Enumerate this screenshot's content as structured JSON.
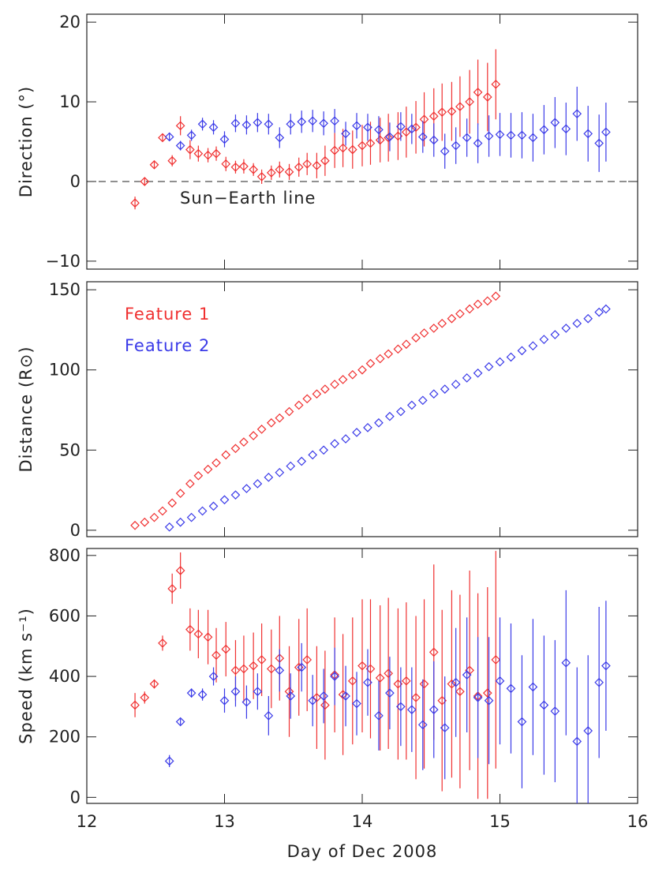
{
  "chart_data": [
    {
      "type": "scatter",
      "ylabel": "Direction (°)",
      "xlim": [
        12,
        16
      ],
      "xticks": [
        12,
        13,
        14,
        15,
        16
      ],
      "ylim": [
        -11,
        21
      ],
      "yticks": [
        {
          "value": -10,
          "label": "−10"
        },
        0,
        10,
        20
      ],
      "reference_line": {
        "value": 0,
        "label": "Sun−Earth line"
      },
      "series": [
        {
          "name": "Feature 1",
          "color": "#f03030",
          "x": [
            12.35,
            12.42,
            12.49,
            12.55,
            12.62,
            12.68,
            12.75,
            12.81,
            12.88,
            12.94,
            13.01,
            13.08,
            13.14,
            13.21,
            13.27,
            13.34,
            13.4,
            13.47,
            13.54,
            13.6,
            13.67,
            13.73,
            13.8,
            13.86,
            13.93,
            14.0,
            14.06,
            14.13,
            14.19,
            14.26,
            14.32,
            14.39,
            14.45,
            14.52,
            14.58,
            14.65,
            14.71,
            14.78,
            14.84,
            14.91,
            14.97
          ],
          "values": [
            -2.7,
            0.0,
            2.1,
            5.5,
            2.6,
            7.0,
            4.0,
            3.5,
            3.3,
            3.5,
            2.2,
            1.8,
            1.9,
            1.5,
            0.6,
            1.1,
            1.5,
            1.2,
            1.8,
            2.2,
            2.0,
            2.6,
            3.9,
            4.2,
            4.0,
            4.5,
            4.8,
            5.2,
            5.5,
            5.7,
            6.2,
            6.8,
            7.8,
            8.2,
            8.7,
            8.8,
            9.4,
            10.0,
            11.2,
            10.6,
            12.2
          ],
          "errors": [
            0.8,
            0.5,
            0.4,
            0.5,
            0.7,
            1.2,
            1.2,
            1.0,
            0.9,
            0.9,
            0.9,
            0.8,
            0.9,
            0.8,
            0.9,
            0.9,
            1.0,
            1.0,
            1.2,
            1.4,
            1.6,
            1.9,
            2.2,
            2.4,
            2.4,
            2.6,
            2.7,
            2.8,
            3.0,
            3.0,
            3.2,
            3.3,
            3.4,
            3.5,
            3.6,
            3.7,
            3.8,
            4.0,
            4.1,
            4.3,
            4.4
          ]
        },
        {
          "name": "Feature 2",
          "color": "#3a3ae8",
          "x": [
            12.6,
            12.68,
            12.76,
            12.84,
            12.92,
            13.0,
            13.08,
            13.16,
            13.24,
            13.32,
            13.4,
            13.48,
            13.56,
            13.64,
            13.72,
            13.8,
            13.88,
            13.96,
            14.04,
            14.12,
            14.2,
            14.28,
            14.36,
            14.44,
            14.52,
            14.6,
            14.68,
            14.76,
            14.84,
            14.92,
            15.0,
            15.08,
            15.16,
            15.24,
            15.32,
            15.4,
            15.48,
            15.56,
            15.64,
            15.72,
            15.77
          ],
          "values": [
            5.6,
            4.5,
            5.8,
            7.2,
            6.8,
            5.3,
            7.3,
            7.1,
            7.4,
            7.2,
            5.5,
            7.2,
            7.5,
            7.6,
            7.3,
            7.6,
            6.0,
            7.0,
            6.8,
            6.5,
            5.6,
            6.9,
            6.6,
            5.6,
            5.2,
            3.8,
            4.5,
            5.5,
            4.8,
            5.7,
            5.9,
            5.8,
            5.8,
            5.5,
            6.5,
            7.4,
            6.6,
            8.5,
            6.0,
            4.8,
            6.2
          ],
          "errors": [
            0.4,
            0.6,
            0.7,
            0.8,
            0.9,
            1.0,
            1.1,
            1.2,
            1.2,
            1.3,
            1.3,
            1.3,
            1.4,
            1.4,
            1.5,
            1.5,
            1.5,
            1.6,
            1.7,
            1.7,
            1.8,
            1.8,
            1.9,
            2.0,
            2.1,
            2.2,
            2.3,
            2.4,
            2.5,
            2.6,
            2.7,
            2.8,
            2.9,
            3.0,
            3.1,
            3.2,
            3.3,
            3.4,
            3.5,
            3.6,
            3.7
          ]
        }
      ]
    },
    {
      "type": "scatter",
      "ylabel": "Distance (R⊙)",
      "legend": "upper left",
      "xlim": [
        12,
        16
      ],
      "xticks": [
        12,
        13,
        14,
        15,
        16
      ],
      "ylim": [
        -4,
        155
      ],
      "yticks": [
        0,
        50,
        100,
        150
      ],
      "series": [
        {
          "name": "Feature 1",
          "color": "#f03030",
          "x": [
            12.35,
            12.42,
            12.49,
            12.55,
            12.62,
            12.68,
            12.75,
            12.81,
            12.88,
            12.94,
            13.01,
            13.08,
            13.14,
            13.21,
            13.27,
            13.34,
            13.4,
            13.47,
            13.54,
            13.6,
            13.67,
            13.73,
            13.8,
            13.86,
            13.93,
            14.0,
            14.06,
            14.13,
            14.19,
            14.26,
            14.32,
            14.39,
            14.45,
            14.52,
            14.58,
            14.65,
            14.71,
            14.78,
            14.84,
            14.91,
            14.97
          ],
          "values": [
            3,
            5,
            8,
            12,
            17,
            23,
            29,
            34,
            38,
            42,
            47,
            51,
            55,
            59,
            63,
            67,
            70,
            74,
            78,
            82,
            85,
            88,
            91,
            94,
            97,
            100,
            104,
            107,
            110,
            113,
            116,
            120,
            123,
            126,
            129,
            132,
            135,
            138,
            141,
            143,
            146
          ]
        },
        {
          "name": "Feature 2",
          "color": "#3a3ae8",
          "x": [
            12.6,
            12.68,
            12.76,
            12.84,
            12.92,
            13.0,
            13.08,
            13.16,
            13.24,
            13.32,
            13.4,
            13.48,
            13.56,
            13.64,
            13.72,
            13.8,
            13.88,
            13.96,
            14.04,
            14.12,
            14.2,
            14.28,
            14.36,
            14.44,
            14.52,
            14.6,
            14.68,
            14.76,
            14.84,
            14.92,
            15.0,
            15.08,
            15.16,
            15.24,
            15.32,
            15.4,
            15.48,
            15.56,
            15.64,
            15.72,
            15.77
          ],
          "values": [
            2,
            5,
            8,
            12,
            15,
            19,
            22,
            26,
            29,
            33,
            36,
            40,
            43,
            47,
            50,
            54,
            57,
            61,
            64,
            67,
            71,
            74,
            78,
            81,
            85,
            88,
            91,
            95,
            98,
            102,
            105,
            108,
            112,
            115,
            119,
            122,
            126,
            129,
            132,
            136,
            138
          ]
        }
      ]
    },
    {
      "type": "scatter",
      "ylabel": "Speed (km s⁻¹)",
      "xlabel": "Day of Dec 2008",
      "xlim": [
        12,
        16
      ],
      "xticks": [
        12,
        13,
        14,
        15,
        16
      ],
      "ylim": [
        -20,
        823
      ],
      "yticks": [
        0,
        200,
        400,
        600,
        800
      ],
      "series": [
        {
          "name": "Feature 1",
          "color": "#f03030",
          "x": [
            12.35,
            12.42,
            12.49,
            12.55,
            12.62,
            12.68,
            12.75,
            12.81,
            12.88,
            12.94,
            13.01,
            13.08,
            13.14,
            13.21,
            13.27,
            13.34,
            13.4,
            13.47,
            13.54,
            13.6,
            13.67,
            13.73,
            13.8,
            13.86,
            13.93,
            14.0,
            14.06,
            14.13,
            14.19,
            14.26,
            14.32,
            14.39,
            14.45,
            14.52,
            14.58,
            14.65,
            14.71,
            14.78,
            14.84,
            14.91,
            14.97
          ],
          "values": [
            305,
            330,
            375,
            510,
            690,
            750,
            555,
            540,
            530,
            470,
            490,
            420,
            425,
            435,
            455,
            425,
            460,
            350,
            430,
            455,
            330,
            305,
            405,
            340,
            385,
            435,
            425,
            395,
            410,
            375,
            385,
            330,
            375,
            480,
            320,
            375,
            350,
            420,
            335,
            345,
            455
          ],
          "errors": [
            40,
            20,
            15,
            25,
            50,
            60,
            70,
            80,
            90,
            90,
            90,
            100,
            110,
            110,
            120,
            130,
            140,
            150,
            160,
            170,
            170,
            180,
            190,
            200,
            210,
            220,
            230,
            240,
            250,
            250,
            260,
            270,
            280,
            290,
            300,
            310,
            320,
            330,
            340,
            350,
            360
          ]
        },
        {
          "name": "Feature 2",
          "color": "#3a3ae8",
          "x": [
            12.6,
            12.68,
            12.76,
            12.84,
            12.92,
            13.0,
            13.08,
            13.16,
            13.24,
            13.32,
            13.4,
            13.48,
            13.56,
            13.64,
            13.72,
            13.8,
            13.88,
            13.96,
            14.04,
            14.12,
            14.2,
            14.28,
            14.36,
            14.44,
            14.52,
            14.6,
            14.68,
            14.76,
            14.84,
            14.92,
            15.0,
            15.08,
            15.16,
            15.24,
            15.32,
            15.4,
            15.48,
            15.56,
            15.64,
            15.72,
            15.77
          ],
          "values": [
            120,
            250,
            345,
            340,
            400,
            320,
            350,
            315,
            350,
            270,
            420,
            335,
            430,
            320,
            335,
            400,
            335,
            310,
            380,
            270,
            345,
            300,
            290,
            240,
            290,
            230,
            380,
            405,
            330,
            320,
            385,
            360,
            250,
            365,
            305,
            285,
            445,
            185,
            220,
            380,
            435
          ],
          "errors": [
            20,
            10,
            15,
            20,
            30,
            40,
            50,
            55,
            60,
            65,
            70,
            75,
            80,
            85,
            90,
            95,
            100,
            105,
            110,
            115,
            120,
            130,
            140,
            150,
            160,
            170,
            180,
            190,
            200,
            210,
            210,
            215,
            220,
            225,
            230,
            235,
            240,
            245,
            250,
            250,
            215
          ]
        }
      ]
    }
  ]
}
